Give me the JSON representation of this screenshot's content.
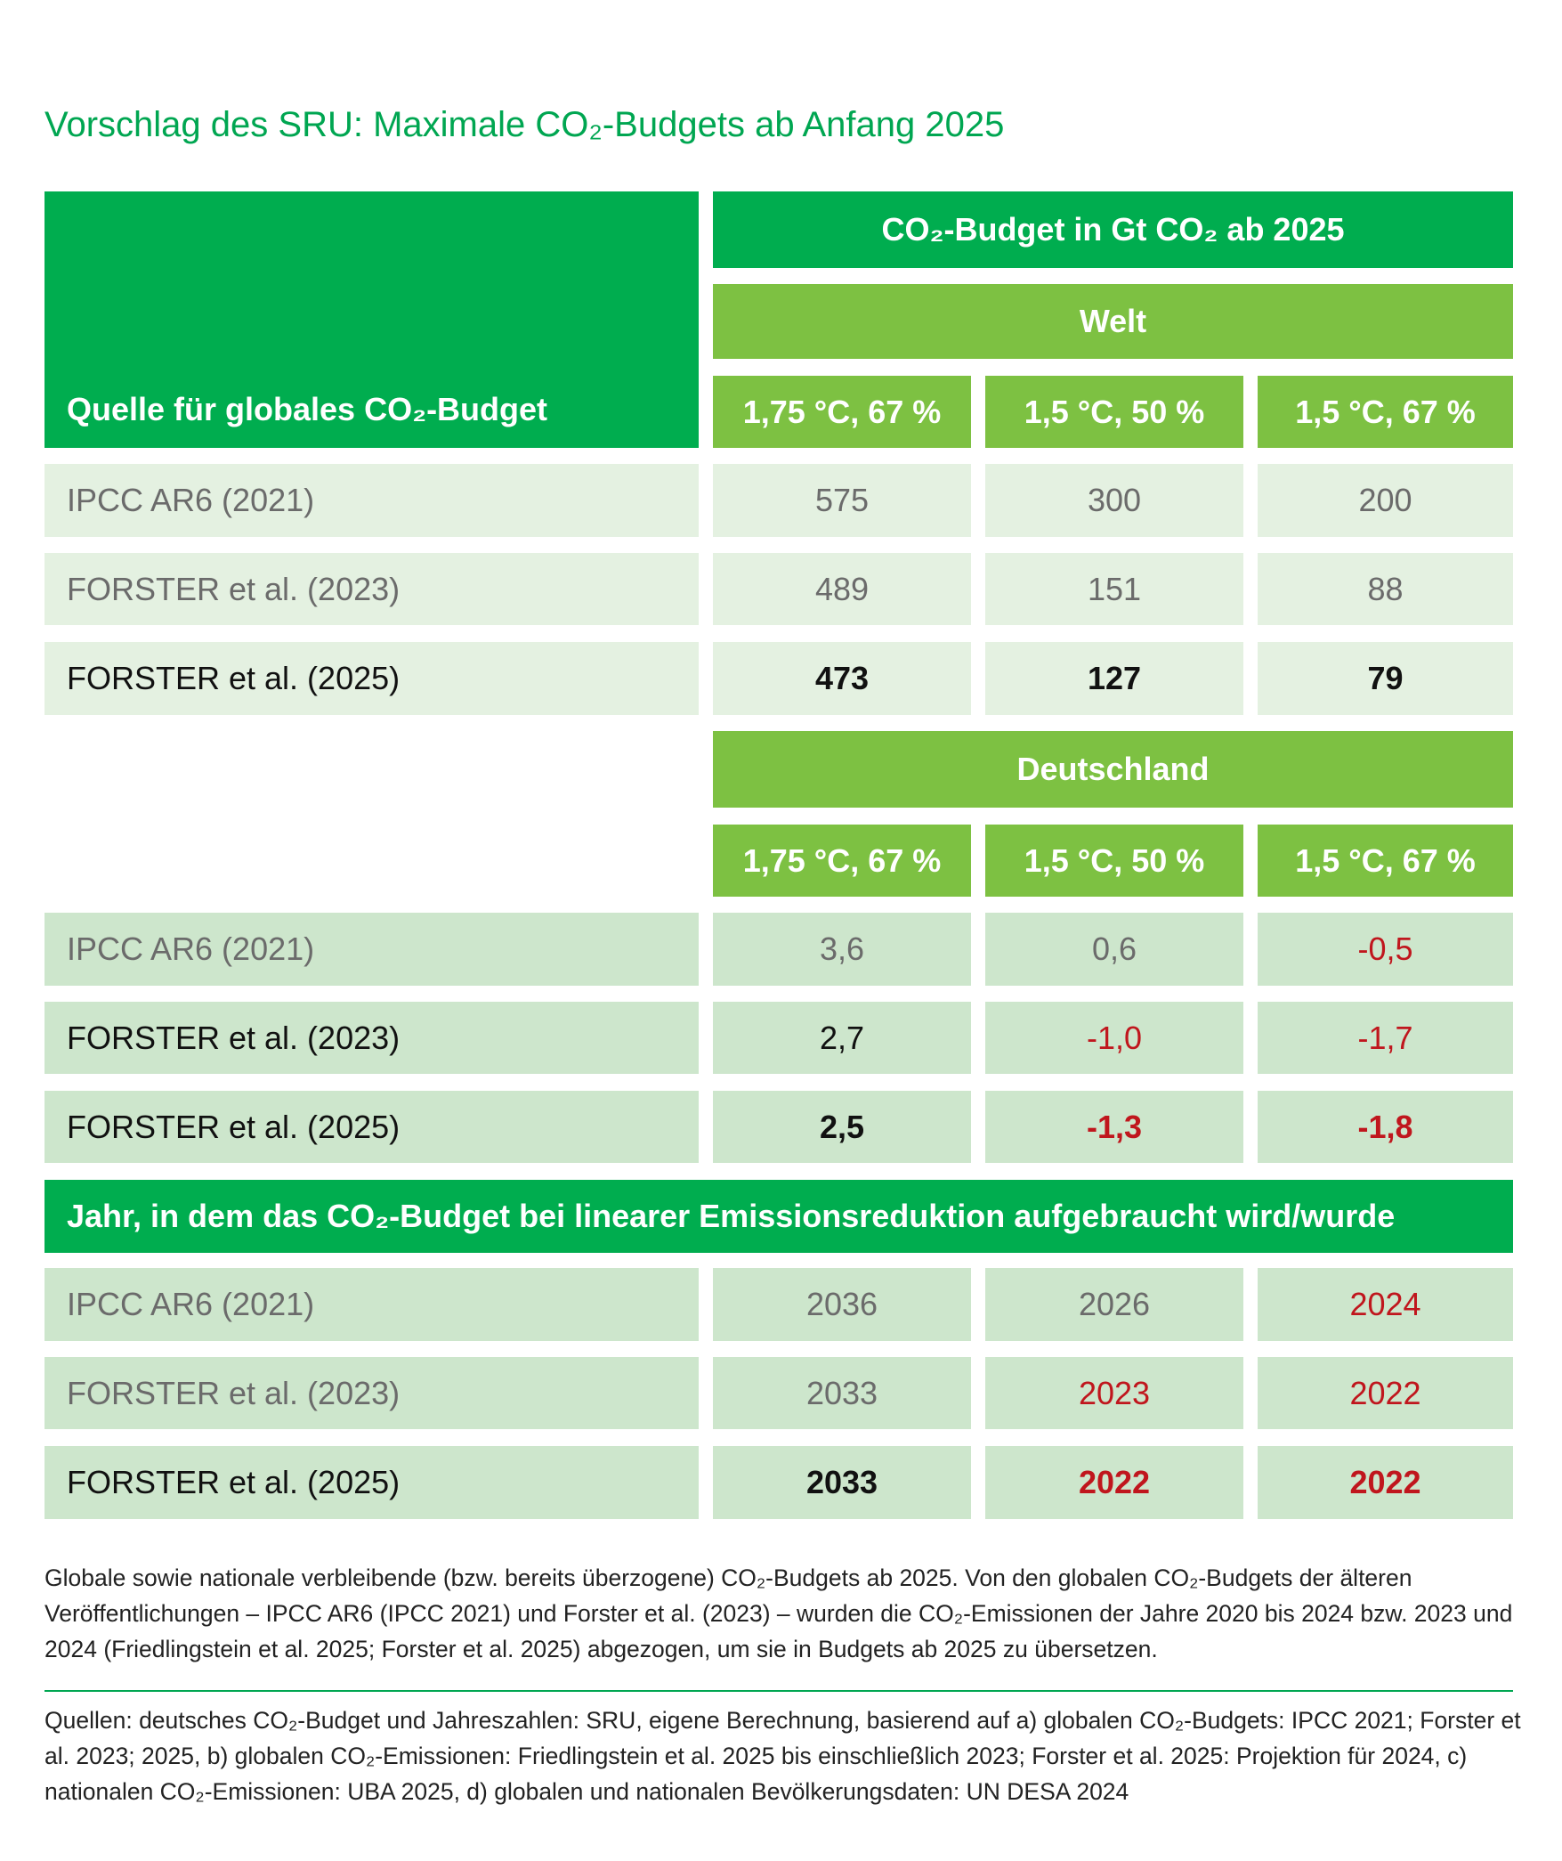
{
  "title": "Vorschlag des SRU: Maximale CO₂-Budgets ab Anfang 2025",
  "table": {
    "source_header": "Quelle für globales CO₂-Budget",
    "budget_header": "CO₂-Budget in Gt CO₂ ab 2025",
    "header_color": "#00ad4f",
    "subheader_color": "#7dc142",
    "sections": [
      {
        "title": "Welt",
        "columns": [
          "1,75 °C, 67 %",
          "1,5 °C, 50 %",
          "1,5 °C, 67 %"
        ],
        "rows": [
          {
            "source": "IPCC AR6 (2021)",
            "values": [
              "575",
              "300",
              "200"
            ],
            "bold": false,
            "background": "#e4f1e1",
            "text_color": "#6b6b6b",
            "value_colors": [
              "#6b6b6b",
              "#6b6b6b",
              "#6b6b6b"
            ]
          },
          {
            "source": "FORSTER et al. (2023)",
            "values": [
              "489",
              "151",
              "88"
            ],
            "bold": false,
            "background": "#e4f1e1",
            "text_color": "#6b6b6b",
            "value_colors": [
              "#6b6b6b",
              "#6b6b6b",
              "#6b6b6b"
            ]
          },
          {
            "source": "FORSTER et al. (2025)",
            "values": [
              "473",
              "127",
              "79"
            ],
            "bold": true,
            "background": "#e4f1e1",
            "text_color": "#111111",
            "value_colors": [
              "#111111",
              "#111111",
              "#111111"
            ]
          }
        ]
      },
      {
        "title": "Deutschland",
        "columns": [
          "1,75 °C, 67 %",
          "1,5 °C, 50 %",
          "1,5 °C, 67 %"
        ],
        "rows": [
          {
            "source": "IPCC AR6 (2021)",
            "values": [
              "3,6",
              "0,6",
              "-0,5"
            ],
            "bold": false,
            "background": "#cde6cc",
            "text_color": "#6b6b6b",
            "value_colors": [
              "#6b6b6b",
              "#6b6b6b",
              "#c0161d"
            ]
          },
          {
            "source": "FORSTER et al. (2023)",
            "values": [
              "2,7",
              "-1,0",
              "-1,7"
            ],
            "bold": false,
            "background": "#cde6cc",
            "text_color": "#111111",
            "value_colors": [
              "#111111",
              "#c0161d",
              "#c0161d"
            ]
          },
          {
            "source": "FORSTER et al. (2025)",
            "values": [
              "2,5",
              "-1,3",
              "-1,8"
            ],
            "bold": true,
            "background": "#cde6cc",
            "text_color": "#111111",
            "value_colors": [
              "#111111",
              "#c0161d",
              "#c0161d"
            ]
          }
        ]
      },
      {
        "title": "Jahr, in dem das CO₂-Budget bei linearer Emissionsreduktion aufgebraucht wird/wurde",
        "rows": [
          {
            "source": "IPCC AR6 (2021)",
            "values": [
              "2036",
              "2026",
              "2024"
            ],
            "bold": false,
            "background": "#cde6cc",
            "text_color": "#6b6b6b",
            "value_colors": [
              "#6b6b6b",
              "#6b6b6b",
              "#c0161d"
            ]
          },
          {
            "source": "FORSTER et al. (2023)",
            "values": [
              "2033",
              "2023",
              "2022"
            ],
            "bold": false,
            "background": "#cde6cc",
            "text_color": "#6b6b6b",
            "value_colors": [
              "#6b6b6b",
              "#c0161d",
              "#c0161d"
            ]
          },
          {
            "source": "FORSTER et al. (2025)",
            "values": [
              "2033",
              "2022",
              "2022"
            ],
            "bold": true,
            "background": "#cde6cc",
            "text_color": "#111111",
            "value_colors": [
              "#111111",
              "#c0161d",
              "#c0161d"
            ]
          }
        ]
      }
    ]
  },
  "caption": "Globale sowie nationale verbleibende (bzw. bereits überzogene) CO₂-Budgets ab 2025. Von den globalen CO₂-Budgets der älteren Veröffentlichungen – IPCC AR6 (IPCC 2021) und Forster et al. (2023) – wurden die CO₂-Emissionen der Jahre 2020 bis 2024 bzw. 2023 und 2024 (Friedlingstein et al. 2025; Forster et al. 2025) abgezogen, um sie in Budgets ab 2025 zu übersetzen.",
  "sources": "Quellen: deutsches CO₂-Budget und Jahreszahlen: SRU, eigene Berechnung, basierend auf a) globalen CO₂-Budgets: IPCC 2021; Forster et al. 2023; 2025, b) globalen CO₂-Emissionen: Friedlingstein et al. 2025 bis einschließlich 2023; Forster et al. 2025: Projektion für 2024, c) nationalen CO₂-Emissionen: UBA 2025, d) globalen und nationalen Bevölkerungsdaten: UN DESA 2024"
}
